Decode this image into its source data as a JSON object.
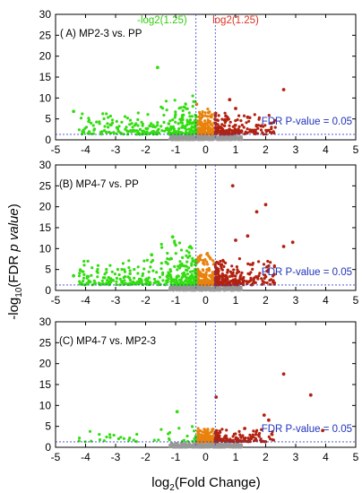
{
  "chart_data": [
    {
      "type": "scatter",
      "title": "( A) MP2-3 vs. PP",
      "xlim": [
        -5,
        5
      ],
      "ylim": [
        0,
        30
      ],
      "xticks": [
        -5,
        -4,
        -3,
        -2,
        -1,
        0,
        1,
        2,
        3,
        4,
        5
      ],
      "yticks": [
        0,
        5,
        10,
        15,
        20,
        25,
        30
      ],
      "threshold_label": "FDR P-value = 0.05",
      "threshold_value": 1.3,
      "fc_neg_label": "-log2(1.25)",
      "fc_pos_label": "log2(1.25)",
      "fc_cutoffs": [
        -0.322,
        0.322
      ],
      "highlight_points": [
        [
          -1.6,
          17.3
        ],
        [
          2.6,
          12
        ],
        [
          -4.4,
          6.8
        ],
        [
          0.8,
          9.6
        ],
        [
          1.0,
          7.5
        ],
        [
          -0.3,
          8.5
        ],
        [
          0.1,
          6.5
        ],
        [
          1.4,
          5.4
        ]
      ]
    },
    {
      "type": "scatter",
      "title": "(B) MP4-7 vs. PP",
      "xlim": [
        -5,
        5
      ],
      "ylim": [
        0,
        30
      ],
      "xticks": [
        -5,
        -4,
        -3,
        -2,
        -1,
        0,
        1,
        2,
        3,
        4,
        5
      ],
      "yticks": [
        0,
        5,
        10,
        15,
        20,
        25,
        30
      ],
      "threshold_label": "FDR P-value = 0.05",
      "threshold_value": 1.3,
      "fc_cutoffs": [
        -0.322,
        0.322
      ],
      "highlight_points": [
        [
          0.9,
          25
        ],
        [
          2.0,
          20.5
        ],
        [
          1.7,
          18.8
        ],
        [
          2.6,
          10.5
        ],
        [
          2.9,
          11.5
        ],
        [
          1.0,
          12
        ],
        [
          1.4,
          13
        ],
        [
          -1.1,
          12.8
        ],
        [
          -4.4,
          3.5
        ],
        [
          -1.8,
          8.5
        ]
      ]
    },
    {
      "type": "scatter",
      "title": "(C) MP4-7 vs. MP2-3",
      "xlim": [
        -5,
        5
      ],
      "ylim": [
        0,
        30
      ],
      "xticks": [
        -5,
        -4,
        -3,
        -2,
        -1,
        0,
        1,
        2,
        3,
        4,
        5
      ],
      "yticks": [
        0,
        5,
        10,
        15,
        20,
        25,
        30
      ],
      "threshold_label": "FDR P-value = 0.05",
      "threshold_value": 1.3,
      "fc_cutoffs": [
        -0.322,
        0.322
      ],
      "highlight_points": [
        [
          2.6,
          17.5
        ],
        [
          3.5,
          12.5
        ],
        [
          0.35,
          12
        ],
        [
          -0.95,
          8.5
        ],
        [
          1.95,
          7.7
        ],
        [
          2.1,
          6.5
        ],
        [
          3.9,
          4.0
        ],
        [
          1.3,
          4.5
        ]
      ]
    }
  ],
  "axes": {
    "ylabel_prefix": "-log",
    "ylabel_sub": "10",
    "ylabel_main": "(FDR ",
    "ylabel_italic": "p value",
    "ylabel_close": ")",
    "xlabel_prefix": "log",
    "xlabel_sub": "2",
    "xlabel_main": "(Fold Change)"
  },
  "colors": {
    "down": "#33dd11",
    "up": "#b22211",
    "fc_band_low": "#e8820c",
    "ns": "#999999",
    "cutoff_line": "#3344cc",
    "threshold_text": "#2233bb",
    "fc_neg_text": "#33cc11",
    "fc_pos_text": "#dd3322"
  }
}
